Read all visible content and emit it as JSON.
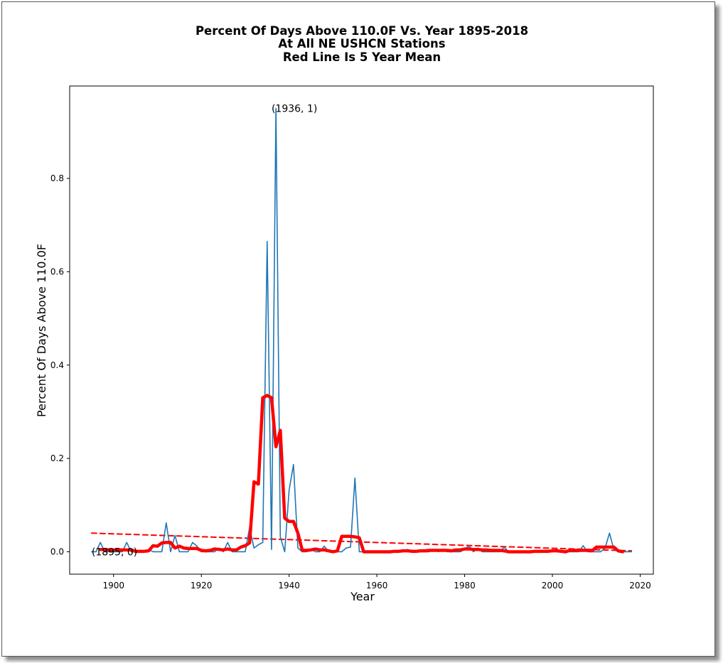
{
  "chart_data": {
    "type": "line",
    "title_lines": [
      "Percent Of Days Above 110.0F Vs. Year 1895-2018",
      "At All NE USHCN Stations",
      "Red Line Is 5 Year Mean"
    ],
    "xlabel": "Year",
    "ylabel": "Percent Of Days Above 110.0F",
    "xlim": [
      1890,
      2023
    ],
    "ylim": [
      -0.048,
      0.998
    ],
    "x_ticks": [
      1900,
      1920,
      1940,
      1960,
      1980,
      2000,
      2020
    ],
    "y_ticks": [
      0.0,
      0.2,
      0.4,
      0.6,
      0.8
    ],
    "y_tick_labels": [
      "0.0",
      "0.2",
      "0.4",
      "0.6",
      "0.8"
    ],
    "grid": false,
    "colors": {
      "annual": "#1f77b4",
      "mean": "#ff0000",
      "trend": "#ff0000"
    },
    "annotations": [
      {
        "text": "(1936, 1)",
        "x": 1936,
        "y": 0.95
      },
      {
        "text": "(1895, 0)",
        "x": 1895,
        "y": 0.0
      }
    ],
    "series": [
      {
        "style": "annual",
        "x": [
          1895,
          1896,
          1897,
          1898,
          1899,
          1900,
          1901,
          1902,
          1903,
          1904,
          1905,
          1906,
          1907,
          1908,
          1909,
          1910,
          1911,
          1912,
          1913,
          1914,
          1915,
          1916,
          1917,
          1918,
          1919,
          1920,
          1921,
          1922,
          1923,
          1924,
          1925,
          1926,
          1927,
          1928,
          1929,
          1930,
          1931,
          1932,
          1933,
          1934,
          1935,
          1936,
          1937,
          1938,
          1939,
          1940,
          1941,
          1942,
          1943,
          1944,
          1945,
          1946,
          1947,
          1948,
          1949,
          1950,
          1951,
          1952,
          1953,
          1954,
          1955,
          1956,
          1957,
          1958,
          1959,
          1960,
          1961,
          1962,
          1963,
          1964,
          1965,
          1966,
          1967,
          1968,
          1969,
          1970,
          1971,
          1972,
          1973,
          1974,
          1975,
          1976,
          1977,
          1978,
          1979,
          1980,
          1981,
          1982,
          1983,
          1984,
          1985,
          1986,
          1987,
          1988,
          1989,
          1990,
          1991,
          1992,
          1993,
          1994,
          1995,
          1996,
          1997,
          1998,
          1999,
          2000,
          2001,
          2002,
          2003,
          2004,
          2005,
          2006,
          2007,
          2008,
          2009,
          2010,
          2011,
          2012,
          2013,
          2014,
          2015,
          2016,
          2017,
          2018
        ],
        "y": [
          0.0,
          0.0,
          0.02,
          0.0,
          0.0,
          0.0,
          0.0,
          0.0,
          0.02,
          0.0,
          0.0,
          0.0,
          0.0,
          0.005,
          0.0,
          0.0,
          0.0,
          0.062,
          0.0,
          0.035,
          0.0,
          0.0,
          0.0,
          0.02,
          0.012,
          0.0,
          0.0,
          0.0,
          0.0,
          0.008,
          0.0,
          0.02,
          0.0,
          0.0,
          0.0,
          0.0,
          0.052,
          0.008,
          0.015,
          0.02,
          0.665,
          0.005,
          0.95,
          0.032,
          0.0,
          0.132,
          0.187,
          0.008,
          0.0,
          0.0,
          0.005,
          0.0,
          0.0,
          0.012,
          0.0,
          0.0,
          0.0,
          0.0,
          0.008,
          0.01,
          0.158,
          0.0,
          0.0,
          0.0,
          0.0,
          0.0,
          0.0,
          0.0,
          0.0,
          0.0,
          0.0,
          0.0,
          0.005,
          0.0,
          0.0,
          0.0,
          0.0,
          0.0,
          0.005,
          0.0,
          0.005,
          0.0,
          0.0,
          0.0,
          0.0,
          0.005,
          0.013,
          0.0,
          0.008,
          0.0,
          0.0,
          0.0,
          0.0,
          0.0,
          0.01,
          0.0,
          0.0,
          0.0,
          0.0,
          0.0,
          0.0,
          0.0,
          0.0,
          0.0,
          0.0,
          0.0,
          0.005,
          0.0,
          0.0,
          0.0,
          0.0,
          0.0,
          0.013,
          0.0,
          0.0,
          0.0,
          0.0,
          0.008,
          0.04,
          0.005,
          0.0,
          0.0,
          0.0,
          0.0
        ]
      },
      {
        "style": "mean",
        "x": [
          1897,
          1898,
          1899,
          1900,
          1901,
          1902,
          1903,
          1904,
          1905,
          1906,
          1907,
          1908,
          1909,
          1910,
          1911,
          1912,
          1913,
          1914,
          1915,
          1916,
          1917,
          1918,
          1919,
          1920,
          1921,
          1922,
          1923,
          1924,
          1925,
          1926,
          1927,
          1928,
          1929,
          1930,
          1931,
          1932,
          1933,
          1934,
          1935,
          1936,
          1937,
          1938,
          1939,
          1940,
          1941,
          1942,
          1943,
          1944,
          1945,
          1946,
          1947,
          1948,
          1949,
          1950,
          1951,
          1952,
          1953,
          1954,
          1955,
          1956,
          1957,
          1958,
          1959,
          1960,
          1961,
          1962,
          1963,
          1964,
          1965,
          1966,
          1967,
          1968,
          1969,
          1970,
          1971,
          1972,
          1973,
          1974,
          1975,
          1976,
          1977,
          1978,
          1979,
          1980,
          1981,
          1982,
          1983,
          1984,
          1985,
          1986,
          1987,
          1988,
          1989,
          1990,
          1991,
          1992,
          1993,
          1994,
          1995,
          1996,
          1997,
          1998,
          1999,
          2000,
          2001,
          2002,
          2003,
          2004,
          2005,
          2006,
          2007,
          2008,
          2009,
          2010,
          2011,
          2012,
          2013,
          2014,
          2015,
          2016
        ],
        "y": [
          0.005,
          0.005,
          0.004,
          0.004,
          0.004,
          0.004,
          0.004,
          0.004,
          0.001,
          0.001,
          0.001,
          0.002,
          0.013,
          0.012,
          0.019,
          0.02,
          0.02,
          0.008,
          0.012,
          0.008,
          0.007,
          0.007,
          0.007,
          0.003,
          0.002,
          0.003,
          0.006,
          0.005,
          0.004,
          0.006,
          0.004,
          0.004,
          0.01,
          0.013,
          0.019,
          0.15,
          0.145,
          0.33,
          0.335,
          0.33,
          0.225,
          0.26,
          0.072,
          0.065,
          0.065,
          0.04,
          0.003,
          0.003,
          0.004,
          0.006,
          0.004,
          0.004,
          0.002,
          0.0,
          0.002,
          0.033,
          0.033,
          0.033,
          0.032,
          0.03,
          0.0,
          0.0,
          0.0,
          0.0,
          0.0,
          0.0,
          0.0,
          0.001,
          0.001,
          0.002,
          0.002,
          0.001,
          0.001,
          0.002,
          0.002,
          0.003,
          0.003,
          0.003,
          0.003,
          0.003,
          0.002,
          0.004,
          0.004,
          0.006,
          0.006,
          0.005,
          0.005,
          0.004,
          0.004,
          0.003,
          0.003,
          0.003,
          0.002,
          0.0,
          0.0,
          0.0,
          0.0,
          0.0,
          0.0,
          0.001,
          0.001,
          0.001,
          0.001,
          0.002,
          0.002,
          0.001,
          0.0,
          0.003,
          0.003,
          0.003,
          0.003,
          0.003,
          0.002,
          0.01,
          0.01,
          0.01,
          0.01,
          0.01,
          0.002,
          0.0
        ]
      },
      {
        "style": "trend",
        "x": [
          1895,
          2018
        ],
        "y": [
          0.04,
          0.002
        ]
      }
    ]
  }
}
